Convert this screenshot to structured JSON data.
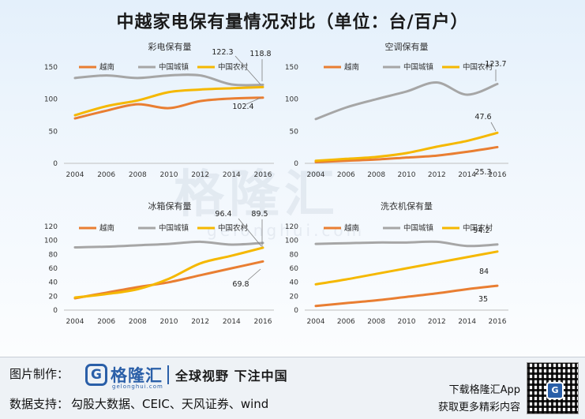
{
  "title": "中越家电保有量情况对比（单位：台/百户）",
  "watermark": {
    "text": "格隆汇",
    "url": "gelonghui.com"
  },
  "colors": {
    "vietnam": "#e97e32",
    "urban": "#a6a6a6",
    "rural": "#f5b800"
  },
  "chart_data": [
    {
      "type": "line",
      "title": "彩电保有量",
      "categories": [
        "2004",
        "2006",
        "2008",
        "2010",
        "2012",
        "2014",
        "2016"
      ],
      "ylim": [
        0,
        150
      ],
      "yticks": [
        0,
        50,
        100,
        150
      ],
      "series": [
        {
          "name": "越南",
          "values": [
            70,
            82,
            92,
            86,
            97,
            101,
            102.4
          ]
        },
        {
          "name": "中国城镇",
          "values": [
            133,
            137,
            133,
            137,
            137,
            123,
            122.3
          ]
        },
        {
          "name": "中国农村",
          "values": [
            75,
            89,
            98,
            111,
            115,
            117,
            118.8
          ]
        }
      ],
      "labels": [
        "122.3",
        "118.8",
        "102.4"
      ]
    },
    {
      "type": "line",
      "title": "空调保有量",
      "categories": [
        "2004",
        "2006",
        "2008",
        "2010",
        "2012",
        "2014",
        "2016"
      ],
      "ylim": [
        0,
        150
      ],
      "yticks": [
        0,
        50,
        100,
        150
      ],
      "series": [
        {
          "name": "越南",
          "values": [
            2,
            4,
            6,
            9,
            12,
            18,
            25.3
          ]
        },
        {
          "name": "中国城镇",
          "values": [
            69,
            87,
            100,
            112,
            126,
            107,
            123.7
          ]
        },
        {
          "name": "中国农村",
          "values": [
            4,
            7,
            10,
            16,
            26,
            35,
            47.6
          ]
        }
      ],
      "labels": [
        "123.7",
        "47.6",
        "25.3"
      ]
    },
    {
      "type": "line",
      "title": "冰箱保有量",
      "categories": [
        "2004",
        "2006",
        "2008",
        "2010",
        "2012",
        "2014",
        "2016"
      ],
      "ylim": [
        0,
        120
      ],
      "yticks": [
        0,
        20,
        40,
        60,
        80,
        100,
        120
      ],
      "series": [
        {
          "name": "越南",
          "values": [
            17,
            25,
            33,
            40,
            50,
            60,
            69.8
          ]
        },
        {
          "name": "中国城镇",
          "values": [
            90,
            91,
            93,
            95,
            98,
            94,
            96.4
          ]
        },
        {
          "name": "中国农村",
          "values": [
            18,
            23,
            30,
            45,
            67,
            78,
            89.5
          ]
        }
      ],
      "labels": [
        "96.4",
        "89.5",
        "69.8"
      ]
    },
    {
      "type": "line",
      "title": "洗衣机保有量",
      "categories": [
        "2004",
        "2006",
        "2008",
        "2010",
        "2012",
        "2014",
        "2016"
      ],
      "ylim": [
        0,
        120
      ],
      "yticks": [
        0,
        20,
        40,
        60,
        80,
        100,
        120
      ],
      "series": [
        {
          "name": "越南",
          "values": [
            6,
            10,
            14,
            19,
            24,
            30,
            35
          ]
        },
        {
          "name": "中国城镇",
          "values": [
            95,
            96,
            97,
            97,
            98,
            92,
            94.2
          ]
        },
        {
          "name": "中国农村",
          "values": [
            37,
            44,
            52,
            60,
            68,
            76,
            84
          ]
        }
      ],
      "labels": [
        "94.2",
        "84",
        "35"
      ]
    }
  ],
  "footer": {
    "made_label": "图片制作：",
    "logo_mark": "G",
    "logo_name": "格隆汇",
    "logo_url": "gelonghui.com",
    "slogan": "全球视野 下注中国",
    "source_label": "数据支持：",
    "source_text": "勾股大数据、CEIC、天风证券、wind",
    "app_line1": "下载格隆汇App",
    "app_line2": "获取更多精彩内容",
    "qr_mark": "G"
  }
}
